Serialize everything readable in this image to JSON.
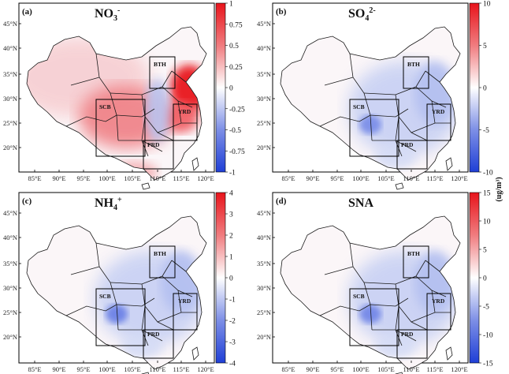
{
  "panels": [
    {
      "id": "a",
      "label": "(a)",
      "title_main": "NO",
      "title_sub": "3",
      "title_sup": "-",
      "colorbar": {
        "ticks": [
          "1",
          "0.75",
          "0.5",
          "0.25",
          "0",
          "-0.25",
          "-0.5",
          "-0.75",
          "-1"
        ]
      }
    },
    {
      "id": "b",
      "label": "(b)",
      "title_main": "SO",
      "title_sub": "4",
      "title_sup": "2-",
      "colorbar": {
        "ticks": [
          "10",
          "5",
          "0",
          "-5",
          "-10"
        ]
      }
    },
    {
      "id": "c",
      "label": "(c)",
      "title_main": "NH",
      "title_sub": "4",
      "title_sup": "+",
      "colorbar": {
        "ticks": [
          "4",
          "3",
          "2",
          "1",
          "0",
          "-1",
          "-2",
          "-3",
          "-4"
        ]
      }
    },
    {
      "id": "d",
      "label": "(d)",
      "title_main": "SNA",
      "title_sub": "",
      "title_sup": "",
      "colorbar": {
        "ticks": [
          "15",
          "10",
          "5",
          "0",
          "-5",
          "-10",
          "-15"
        ]
      }
    }
  ],
  "lat_ticks": [
    "45°N",
    "40°N",
    "35°N",
    "30°N",
    "25°N",
    "20°N"
  ],
  "lon_ticks": [
    "85°E",
    "90°E",
    "95°E",
    "100°E",
    "105°E",
    "110°E",
    "115°E",
    "120°E"
  ],
  "regions": [
    "BTH",
    "YRD",
    "SCB",
    "PRD"
  ],
  "unit_label": "(ug/m³)",
  "colors": {
    "pos": "#e8141b",
    "neg": "#1f3fd6",
    "mid": "#ffffff",
    "border": "#1a1a1a"
  }
}
